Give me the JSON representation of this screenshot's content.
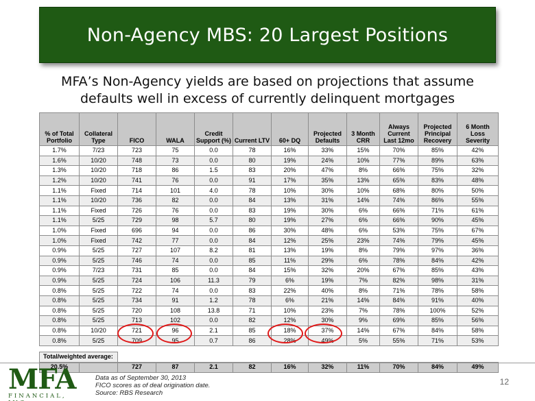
{
  "title": "Non-Agency MBS: 20 Largest Positions",
  "subtitle": "MFA’s Non-Agency yields are based on projections that assume defaults well in excess of currently delinquent mortgages",
  "table": {
    "headers": [
      "% of Total Portfolio",
      "Collateral Type",
      "FICO",
      "WALA",
      "Credit Support (%)",
      "Current LTV",
      "60+ DQ",
      "Projected Defaults",
      "3 Month CRR",
      "Always Current Last 12mo",
      "Projected Principal Recovery",
      "6 Month Loss Severity"
    ],
    "rows": [
      [
        "1.7%",
        "7/23",
        "723",
        "75",
        "0.0",
        "78",
        "16%",
        "33%",
        "15%",
        "70%",
        "85%",
        "42%"
      ],
      [
        "1.6%",
        "10/20",
        "748",
        "73",
        "0.0",
        "80",
        "19%",
        "24%",
        "10%",
        "77%",
        "89%",
        "63%"
      ],
      [
        "1.3%",
        "10/20",
        "718",
        "86",
        "1.5",
        "83",
        "20%",
        "47%",
        "8%",
        "66%",
        "75%",
        "32%"
      ],
      [
        "1.2%",
        "10/20",
        "741",
        "76",
        "0.0",
        "91",
        "17%",
        "35%",
        "13%",
        "65%",
        "83%",
        "48%"
      ],
      [
        "1.1%",
        "Fixed",
        "714",
        "101",
        "4.0",
        "78",
        "10%",
        "30%",
        "10%",
        "68%",
        "80%",
        "50%"
      ],
      [
        "1.1%",
        "10/20",
        "736",
        "82",
        "0.0",
        "84",
        "13%",
        "31%",
        "14%",
        "74%",
        "86%",
        "55%"
      ],
      [
        "1.1%",
        "Fixed",
        "726",
        "76",
        "0.0",
        "83",
        "19%",
        "30%",
        "6%",
        "66%",
        "71%",
        "61%"
      ],
      [
        "1.1%",
        "5/25",
        "729",
        "98",
        "5.7",
        "80",
        "19%",
        "27%",
        "6%",
        "66%",
        "90%",
        "45%"
      ],
      [
        "1.0%",
        "Fixed",
        "696",
        "94",
        "0.0",
        "86",
        "30%",
        "48%",
        "6%",
        "53%",
        "75%",
        "67%"
      ],
      [
        "1.0%",
        "Fixed",
        "742",
        "77",
        "0.0",
        "84",
        "12%",
        "25%",
        "23%",
        "74%",
        "79%",
        "45%"
      ],
      [
        "0.9%",
        "5/25",
        "727",
        "107",
        "8.2",
        "81",
        "13%",
        "19%",
        "8%",
        "79%",
        "97%",
        "36%"
      ],
      [
        "0.9%",
        "5/25",
        "746",
        "74",
        "0.0",
        "85",
        "11%",
        "29%",
        "6%",
        "78%",
        "84%",
        "42%"
      ],
      [
        "0.9%",
        "7/23",
        "731",
        "85",
        "0.0",
        "84",
        "15%",
        "32%",
        "20%",
        "67%",
        "85%",
        "43%"
      ],
      [
        "0.9%",
        "5/25",
        "724",
        "106",
        "11.3",
        "79",
        "6%",
        "19%",
        "7%",
        "82%",
        "98%",
        "31%"
      ],
      [
        "0.8%",
        "5/25",
        "722",
        "74",
        "0.0",
        "83",
        "22%",
        "40%",
        "8%",
        "71%",
        "78%",
        "58%"
      ],
      [
        "0.8%",
        "5/25",
        "734",
        "91",
        "1.2",
        "78",
        "6%",
        "21%",
        "14%",
        "84%",
        "91%",
        "40%"
      ],
      [
        "0.8%",
        "5/25",
        "720",
        "108",
        "13.8",
        "71",
        "10%",
        "23%",
        "7%",
        "78%",
        "100%",
        "52%"
      ],
      [
        "0.8%",
        "5/25",
        "713",
        "102",
        "0.0",
        "82",
        "12%",
        "30%",
        "9%",
        "69%",
        "85%",
        "56%"
      ],
      [
        "0.8%",
        "10/20",
        "721",
        "96",
        "2.1",
        "85",
        "18%",
        "37%",
        "14%",
        "67%",
        "84%",
        "58%"
      ],
      [
        "0.8%",
        "5/25",
        "709",
        "95",
        "0.7",
        "86",
        "28%",
        "49%",
        "5%",
        "55%",
        "71%",
        "53%"
      ]
    ],
    "total_label": "Total/weighted average:",
    "total_row": [
      "20.5%",
      "",
      "727",
      "87",
      "2.1",
      "82",
      "16%",
      "32%",
      "11%",
      "70%",
      "84%",
      "49%"
    ]
  },
  "colors": {
    "title_bg": "#1f5a14",
    "circle": "#e01818",
    "header_bg": "#c8c8c8"
  },
  "footer": {
    "logo_letters": "MFA",
    "logo_sub": "FINANCIAL, INC.",
    "notes": [
      "Data as of September 30, 2013",
      "FICO scores as of deal origination date.",
      "Source: RBS Research"
    ],
    "page_number": "12"
  }
}
